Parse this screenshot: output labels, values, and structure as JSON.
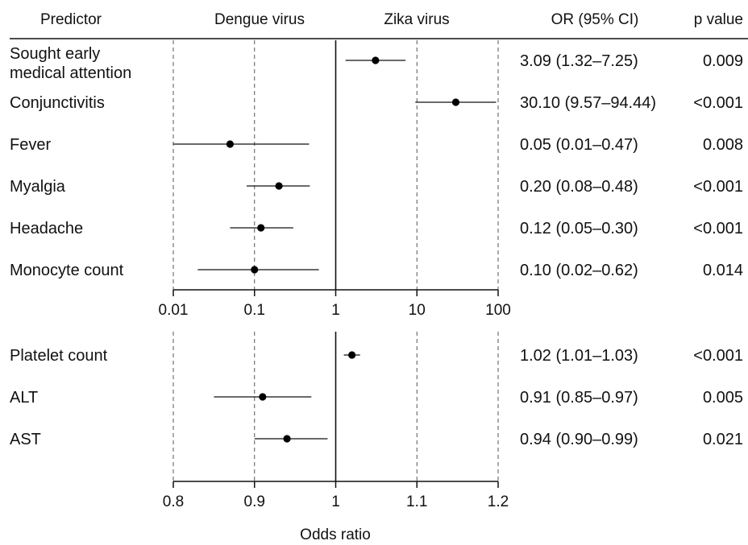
{
  "chart_data": [
    {
      "type": "forest",
      "axis_scale": "log",
      "xlim": [
        0.01,
        100
      ],
      "reference_line": 1,
      "tick_labels": [
        "0.01",
        "0.1",
        "1",
        "10",
        "100"
      ],
      "tick_values": [
        0.01,
        0.1,
        1,
        10,
        100
      ],
      "rows": [
        {
          "predictor": "Sought early",
          "predictor_line2": "medical attention",
          "or": 3.09,
          "lo": 1.32,
          "hi": 7.25,
          "or_text": "3.09 (1.32–7.25)",
          "p_text": "0.009"
        },
        {
          "predictor": "Conjunctivitis",
          "predictor_line2": "",
          "or": 30.1,
          "lo": 9.57,
          "hi": 94.44,
          "or_text": "30.10 (9.57–94.44)",
          "p_text": "<0.001"
        },
        {
          "predictor": "Fever",
          "predictor_line2": "",
          "or": 0.05,
          "lo": 0.01,
          "hi": 0.47,
          "or_text": "0.05 (0.01–0.47)",
          "p_text": "0.008"
        },
        {
          "predictor": "Myalgia",
          "predictor_line2": "",
          "or": 0.2,
          "lo": 0.08,
          "hi": 0.48,
          "or_text": "0.20 (0.08–0.48)",
          "p_text": "<0.001"
        },
        {
          "predictor": "Headache",
          "predictor_line2": "",
          "or": 0.12,
          "lo": 0.05,
          "hi": 0.3,
          "or_text": "0.12 (0.05–0.30)",
          "p_text": "<0.001"
        },
        {
          "predictor": "Monocyte count",
          "predictor_line2": "",
          "or": 0.1,
          "lo": 0.02,
          "hi": 0.62,
          "or_text": "0.10 (0.02–0.62)",
          "p_text": "0.014"
        }
      ]
    },
    {
      "type": "forest",
      "axis_scale": "linear",
      "xlim": [
        0.8,
        1.2
      ],
      "reference_line": 1,
      "tick_labels": [
        "0.8",
        "0.9",
        "1",
        "1.1",
        "1.2"
      ],
      "tick_values": [
        0.8,
        0.9,
        1.0,
        1.1,
        1.2
      ],
      "xlabel": "Odds ratio",
      "rows": [
        {
          "predictor": "Platelet count",
          "predictor_line2": "",
          "or": 1.02,
          "lo": 1.01,
          "hi": 1.03,
          "or_text": "1.02 (1.01–1.03)",
          "p_text": "<0.001"
        },
        {
          "predictor": "ALT",
          "predictor_line2": "",
          "or": 0.91,
          "lo": 0.85,
          "hi": 0.97,
          "or_text": "0.91 (0.85–0.97)",
          "p_text": "0.005"
        },
        {
          "predictor": "AST",
          "predictor_line2": "",
          "or": 0.94,
          "lo": 0.9,
          "hi": 0.99,
          "or_text": "0.94 (0.90–0.99)",
          "p_text": "0.021"
        }
      ]
    }
  ],
  "headers": {
    "predictor": "Predictor",
    "left_group": "Dengue virus",
    "right_group": "Zika virus",
    "or_ci": "OR (95% CI)",
    "p_value": "p value"
  }
}
